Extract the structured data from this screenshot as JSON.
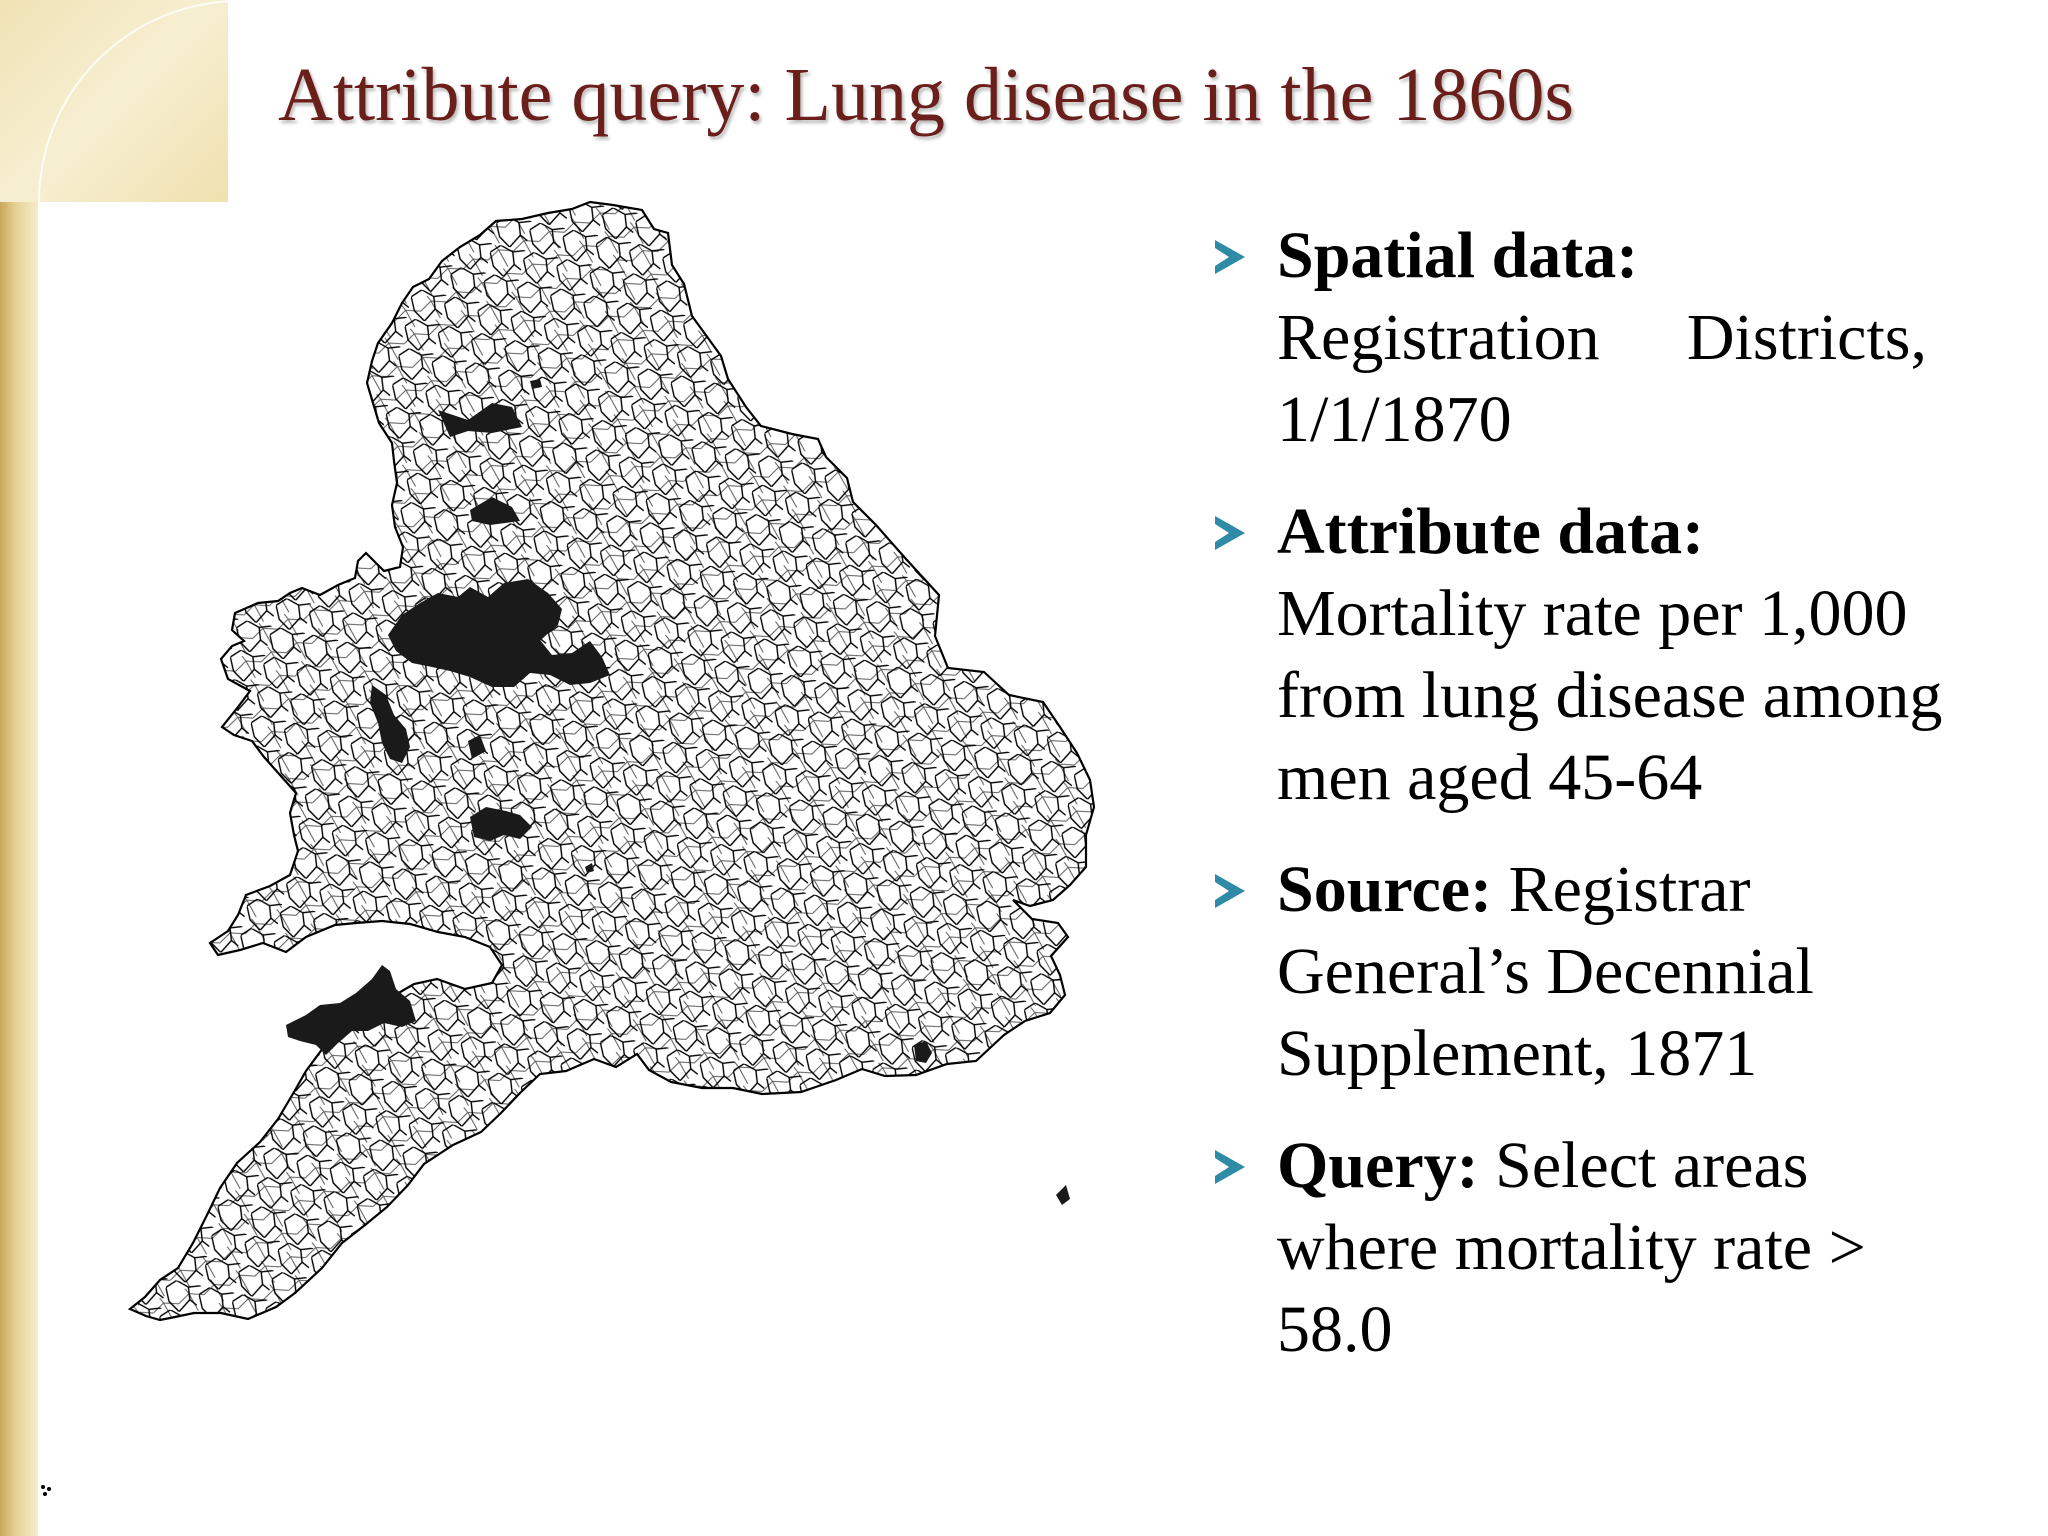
{
  "slide": {
    "title": "Attribute query: Lung disease in the 1860s"
  },
  "bullets": [
    {
      "label": "Spatial data:",
      "lines": [
        "Registration Districts,",
        "1/1/1870"
      ],
      "split_first_line": [
        "Registration",
        "Districts,"
      ]
    },
    {
      "label": "Attribute data:",
      "lines": [
        "Mortality rate per 1,000",
        "from lung disease among",
        "men aged 45-64"
      ]
    },
    {
      "label": "Source:",
      "inline": " Registrar",
      "lines": [
        "General’s Decennial",
        "Supplement, 1871"
      ]
    },
    {
      "label": "Query:",
      "inline": " Select areas",
      "lines": [
        "where mortality rate >",
        "58.0"
      ]
    }
  ],
  "map": {
    "fill_colors": {
      "selected": "#1a1a1a",
      "unselected": "#ffffff",
      "border": "#000000"
    },
    "selected_regions_count": 11
  },
  "theme": {
    "title_color": "#6b1f1b",
    "bullet_arrow_color": "#2f8aa5",
    "accent_gold": "#d9bf76"
  }
}
